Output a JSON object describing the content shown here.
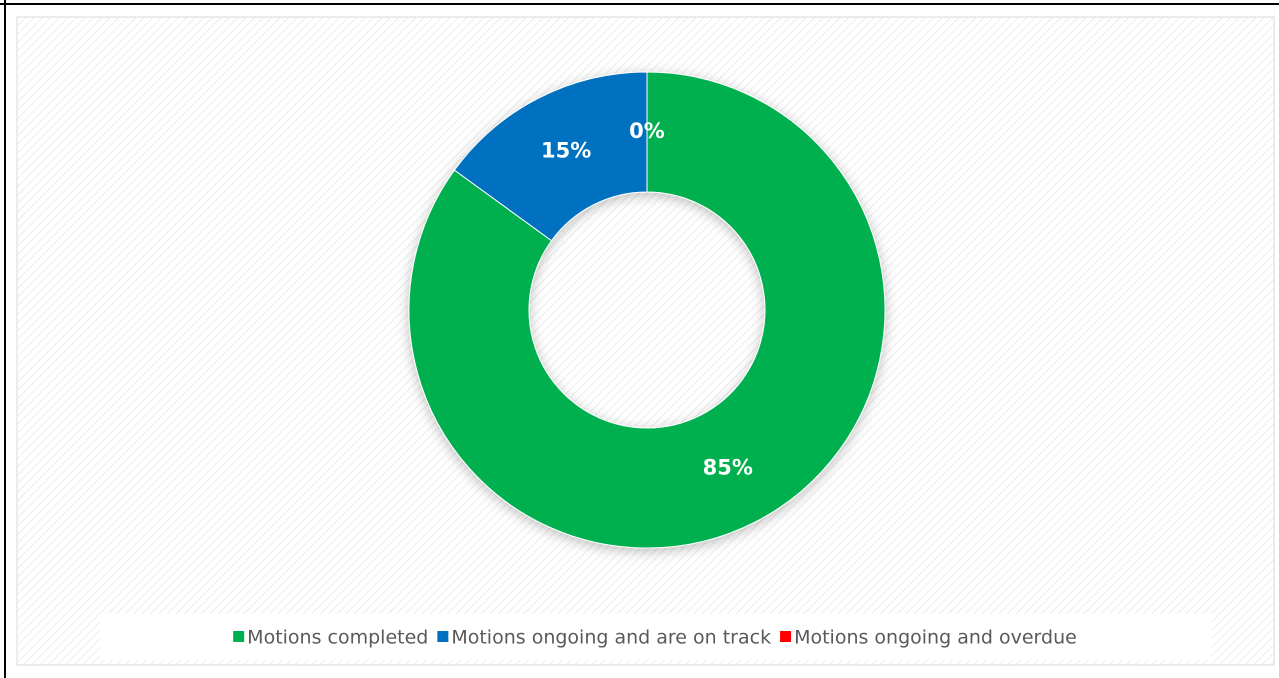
{
  "chart_data": {
    "type": "donut",
    "categories": [
      "Motions completed",
      "Motions ongoing and are on track",
      "Motions ongoing and overdue"
    ],
    "values": [
      85,
      15,
      0
    ],
    "value_labels": [
      "85%",
      "15%",
      "0%"
    ],
    "colors": [
      "#00b050",
      "#0070c0",
      "#ff0000"
    ],
    "legend": "bottom"
  }
}
